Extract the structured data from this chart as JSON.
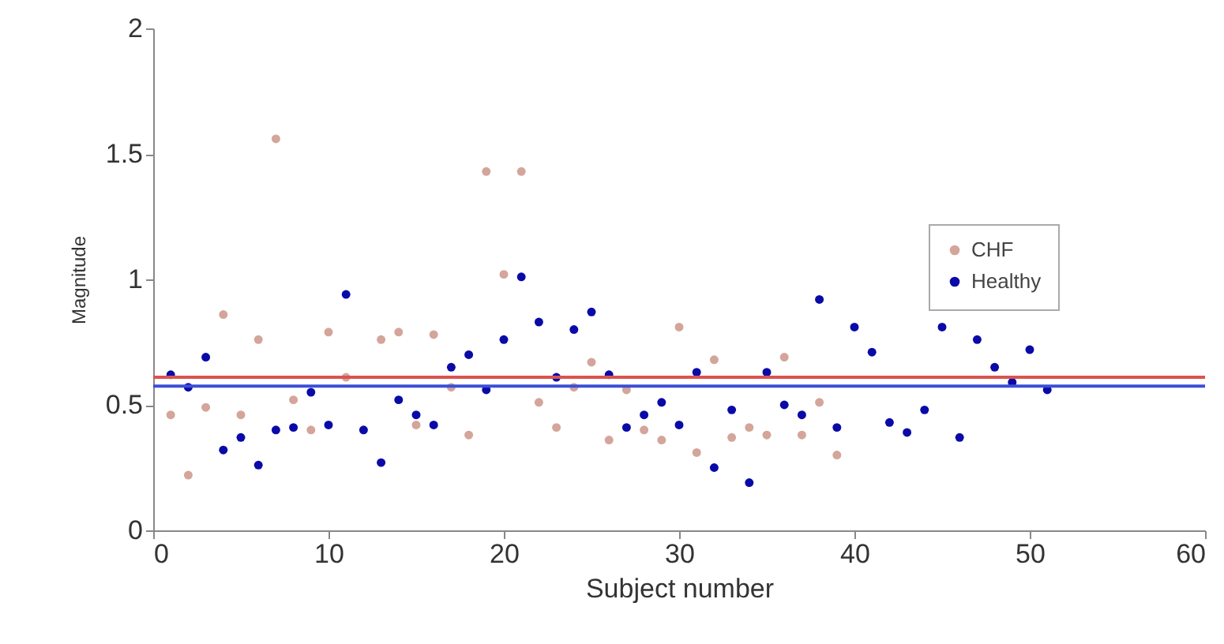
{
  "chart_data": {
    "type": "scatter",
    "xlabel": "Subject number",
    "ylabel": "Magnitude",
    "x": [
      1,
      2,
      3,
      4,
      5,
      6,
      7,
      8,
      9,
      10,
      11,
      12,
      13,
      14,
      15,
      16,
      17,
      18,
      19,
      20,
      21,
      22,
      23,
      24,
      25,
      26,
      27,
      28,
      29,
      30,
      31,
      32,
      33,
      34,
      35,
      36,
      37,
      38,
      39,
      40,
      41,
      42,
      43,
      44,
      45,
      46,
      47,
      48,
      49,
      50,
      51
    ],
    "series": [
      {
        "name": "CHF",
        "color": "#d4a59a",
        "values": [
          0.46,
          0.22,
          0.49,
          0.86,
          0.46,
          0.76,
          1.56,
          0.52,
          0.4,
          0.79,
          0.61,
          null,
          0.76,
          0.79,
          0.42,
          0.78,
          0.57,
          0.38,
          1.43,
          1.02,
          1.43,
          0.51,
          0.41,
          0.57,
          0.67,
          0.36,
          0.56,
          0.4,
          0.36,
          0.81,
          0.31,
          0.68,
          0.37,
          0.41,
          0.38,
          0.69,
          0.38,
          0.51,
          0.3,
          null,
          null,
          null,
          null,
          null,
          null,
          null,
          null,
          null,
          null,
          null,
          null
        ]
      },
      {
        "name": "Healthy",
        "color": "#0a0aa8",
        "values": [
          0.62,
          0.57,
          0.69,
          0.32,
          0.37,
          0.26,
          0.4,
          0.41,
          0.55,
          0.42,
          0.94,
          0.4,
          0.27,
          0.52,
          0.46,
          0.42,
          0.65,
          0.7,
          0.56,
          0.76,
          1.01,
          0.83,
          0.61,
          0.8,
          0.87,
          0.62,
          0.41,
          0.46,
          0.51,
          0.42,
          0.63,
          0.25,
          0.48,
          0.19,
          0.63,
          0.5,
          0.46,
          0.92,
          0.41,
          0.81,
          0.71,
          0.43,
          0.39,
          0.48,
          0.81,
          0.37,
          0.76,
          0.65,
          0.59,
          0.72,
          0.56
        ]
      }
    ],
    "ref_lines": [
      {
        "axis": "y",
        "value": 0.61,
        "color": "#d9534f"
      },
      {
        "axis": "y",
        "value": 0.575,
        "color": "#3b4fd6"
      }
    ],
    "xlim": [
      0,
      60
    ],
    "xticks": [
      0,
      10,
      20,
      30,
      40,
      50,
      60
    ],
    "ylim": [
      0,
      2
    ],
    "yticks": [
      0,
      0.5,
      1,
      1.5,
      2
    ],
    "grid": false,
    "legend": "right",
    "marker": "circle"
  }
}
